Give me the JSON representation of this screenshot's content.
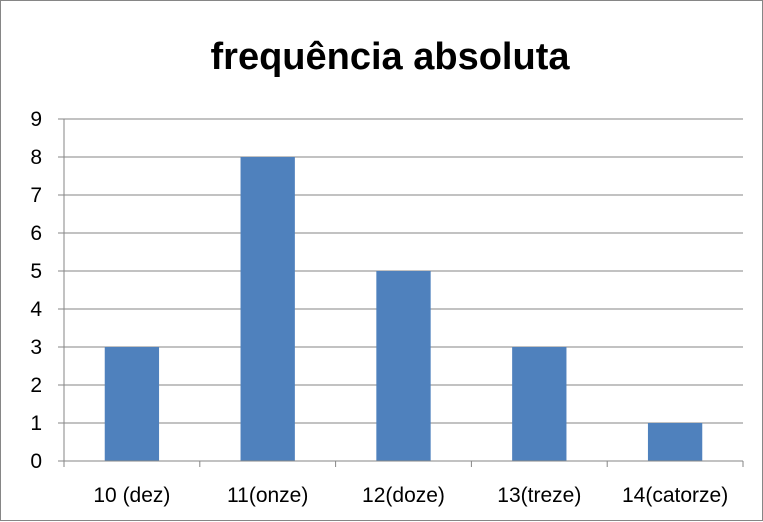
{
  "chart_data": {
    "type": "bar",
    "title": "frequência absoluta",
    "categories": [
      "10 (dez)",
      "11(onze)",
      "12(doze)",
      "13(treze)",
      "14(catorze)"
    ],
    "series": [
      {
        "values": [
          3,
          8,
          5,
          3,
          1
        ]
      }
    ],
    "ylim": [
      0,
      9
    ],
    "yticks": [
      0,
      1,
      2,
      3,
      4,
      5,
      6,
      7,
      8,
      9
    ],
    "grid": true,
    "legend": "none",
    "bar_color": "#4f81bd"
  }
}
